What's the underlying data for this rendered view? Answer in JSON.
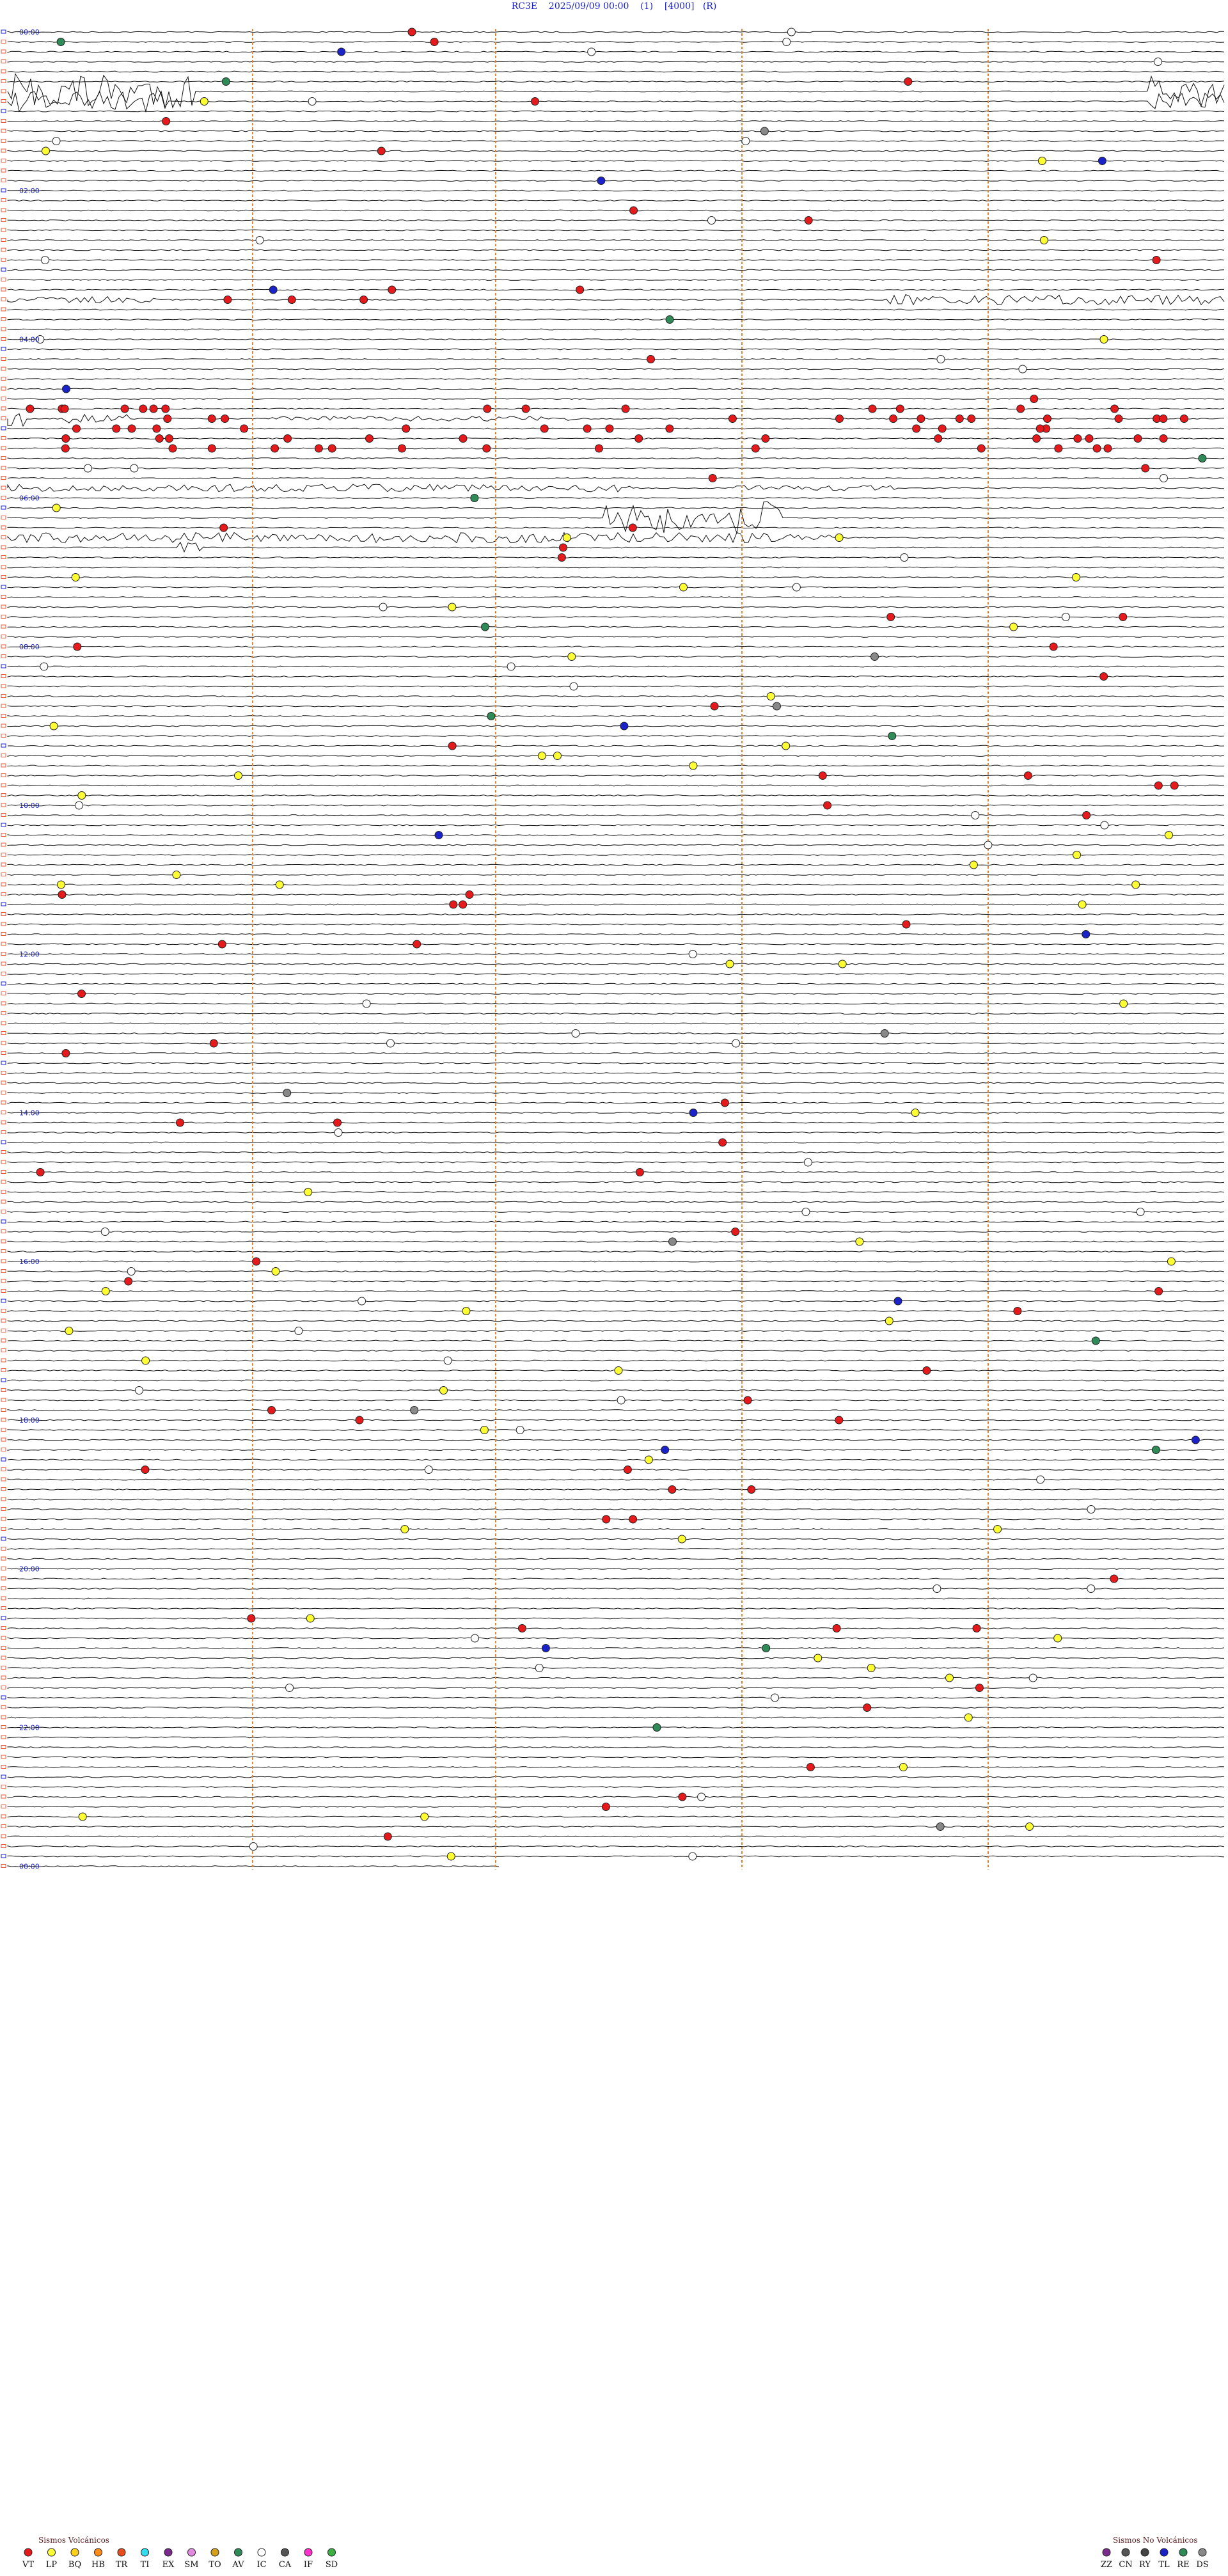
{
  "header": {
    "station": "RC3E",
    "datetime": "2025/09/09 00:00",
    "channel": "(1)",
    "scale": "[4000]",
    "mode": "(R)"
  },
  "chart_data": {
    "type": "helicorder",
    "hour_labels": [
      "00:00",
      "02:00",
      "04:00",
      "06:00",
      "08:00",
      "10:00",
      "12:00",
      "14:00",
      "16:00",
      "18:00",
      "20:00",
      "22:00",
      "00:00"
    ],
    "colors": {
      "trace": "#111111",
      "vertical_marker": "#e0873a",
      "hour_label": "#1a22c8",
      "row_marker": "#e05b3a"
    },
    "legend_volcanic": {
      "title": "Sismos Volcánicos",
      "items": [
        {
          "code": "VT",
          "color": "#e41a1c"
        },
        {
          "code": "LP",
          "color": "#ffff33"
        },
        {
          "code": "BQ",
          "color": "#ffd11a"
        },
        {
          "code": "HB",
          "color": "#ff8c1a"
        },
        {
          "code": "TR",
          "color": "#e64d1a"
        },
        {
          "code": "TI",
          "color": "#33ddee"
        },
        {
          "code": "EX",
          "color": "#7a2a8a"
        },
        {
          "code": "SM",
          "color": "#e08ae0"
        },
        {
          "code": "TO",
          "color": "#d4a017"
        },
        {
          "code": "AV",
          "color": "#2e8b57"
        },
        {
          "code": "IC",
          "color": "#ffffff"
        },
        {
          "code": "CA",
          "color": "#555555"
        },
        {
          "code": "IF",
          "color": "#ff33cc"
        },
        {
          "code": "SD",
          "color": "#3cb043"
        }
      ]
    },
    "legend_non_volcanic": {
      "title": "Sismos No Volcánicos",
      "items": [
        {
          "code": "ZZ",
          "color": "#7a2a8a"
        },
        {
          "code": "CN",
          "color": "#555555"
        },
        {
          "code": "RY",
          "color": "#444444"
        },
        {
          "code": "TL",
          "color": "#1a22c8"
        },
        {
          "code": "RE",
          "color": "#2e8b57"
        },
        {
          "code": "DS",
          "color": "#888888"
        }
      ]
    }
  }
}
